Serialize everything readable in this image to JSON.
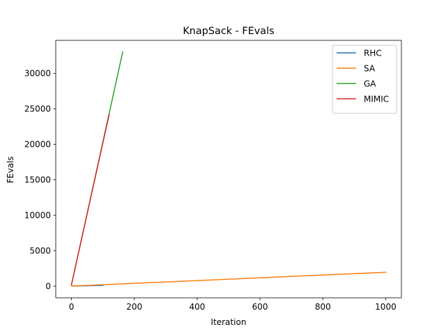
{
  "chart_data": {
    "type": "line",
    "title": "KnapSack - FEvals",
    "xlabel": "Iteration",
    "ylabel": "FEvals",
    "xlim": [
      -50,
      1050
    ],
    "ylim": [
      -1650,
      34650
    ],
    "xticks": [
      0,
      200,
      400,
      600,
      800,
      1000
    ],
    "yticks": [
      0,
      5000,
      10000,
      15000,
      20000,
      25000,
      30000
    ],
    "grid": false,
    "legend_position": "top-right",
    "series": [
      {
        "name": "RHC",
        "color": "#1f77b4",
        "x": [
          0,
          100
        ],
        "y": [
          1,
          101
        ]
      },
      {
        "name": "SA",
        "color": "#ff7f0e",
        "x": [
          0,
          1000
        ],
        "y": [
          1,
          1950
        ]
      },
      {
        "name": "GA",
        "color": "#2ca02c",
        "x": [
          0,
          163
        ],
        "y": [
          200,
          33000
        ]
      },
      {
        "name": "MIMIC",
        "color": "#d62728",
        "x": [
          0,
          120
        ],
        "y": [
          200,
          24200
        ]
      }
    ]
  }
}
